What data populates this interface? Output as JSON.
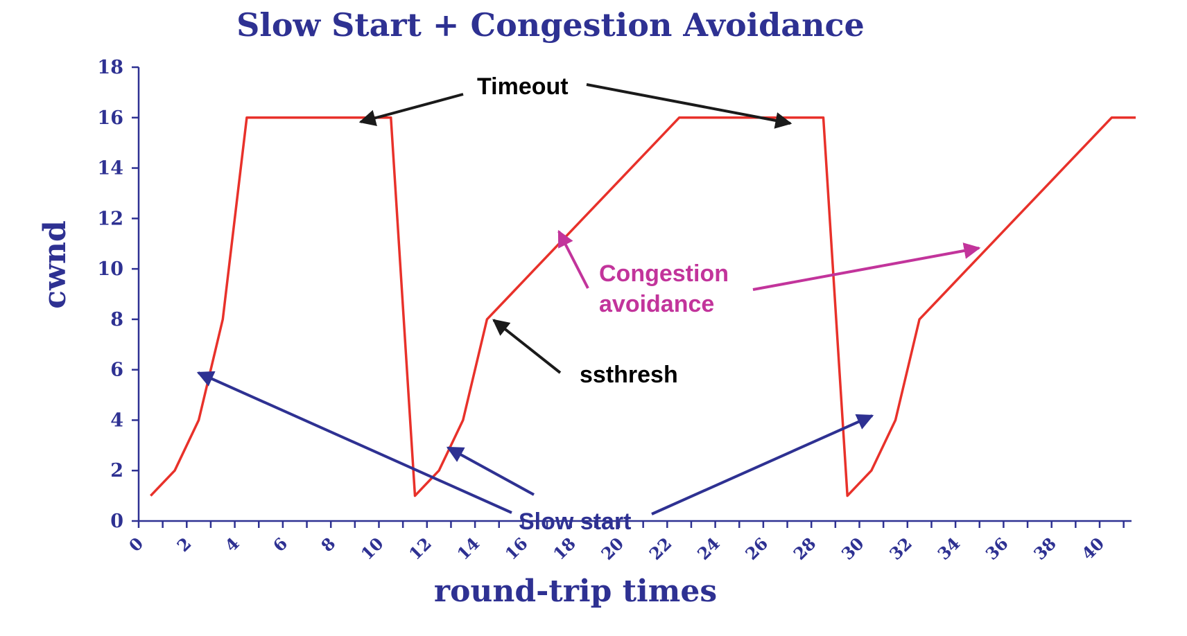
{
  "chart_data": {
    "type": "line",
    "title": "Slow Start + Congestion Avoidance",
    "xlabel": "round-trip times",
    "ylabel": "cwnd",
    "xlim": [
      0,
      41
    ],
    "ylim": [
      0,
      18
    ],
    "x_ticks": [
      "0",
      "2",
      "4",
      "6",
      "8",
      "10",
      "12",
      "14",
      "16",
      "18",
      "20",
      "22",
      "24",
      "26",
      "28",
      "30",
      "32",
      "34",
      "36",
      "38",
      "40"
    ],
    "y_ticks": [
      "0",
      "2",
      "4",
      "6",
      "8",
      "10",
      "12",
      "14",
      "16",
      "18"
    ],
    "grid": false,
    "legend": "none",
    "series": [
      {
        "color": "#e8312a",
        "x": [
          0,
          1,
          2,
          3,
          4,
          5,
          6,
          7,
          8,
          9,
          10,
          11,
          12,
          13,
          14,
          15,
          16,
          17,
          18,
          19,
          20,
          21,
          22,
          23,
          24,
          25,
          26,
          27,
          28,
          29,
          30,
          31,
          32,
          33,
          34,
          35,
          36,
          37,
          38,
          39,
          40,
          41
        ],
        "y": [
          1,
          2,
          4,
          8,
          16,
          16,
          16,
          16,
          16,
          16,
          16,
          1,
          2,
          4,
          8,
          9,
          10,
          11,
          12,
          13,
          14,
          15,
          16,
          16,
          16,
          16,
          16,
          16,
          16,
          1,
          2,
          4,
          8,
          9,
          10,
          11,
          12,
          13,
          14,
          15,
          16,
          16
        ]
      }
    ],
    "annotations": [
      {
        "text": "Timeout",
        "color": "#000000"
      },
      {
        "text": "ssthresh",
        "color": "#000000"
      },
      {
        "text_lines": [
          "Congestion",
          "avoidance"
        ],
        "color": "#c2349b"
      },
      {
        "text": "Slow start",
        "color": "#2e3192"
      }
    ]
  }
}
